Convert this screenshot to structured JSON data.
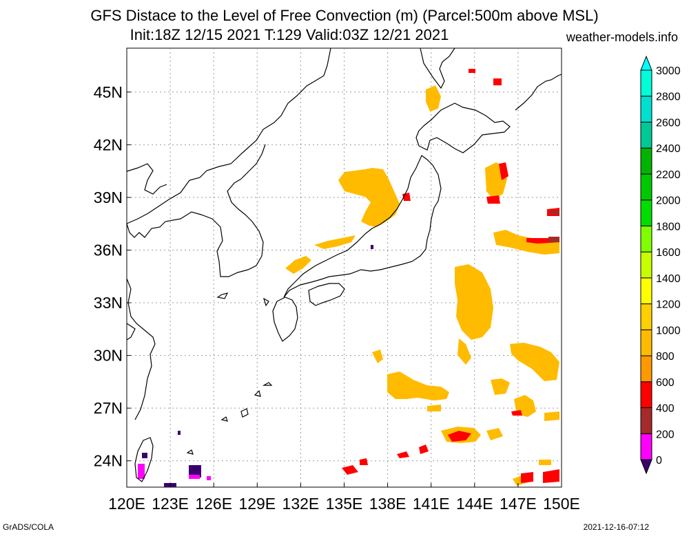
{
  "header": {
    "title_line1": "GFS Distace to the Level of Free Convection (m) (Parcel:500m above MSL)",
    "title_line2": "Init:18Z 12/15 2021 T:129 Valid:03Z 12/21 2021",
    "site": "weather-models.info"
  },
  "footer": {
    "left": "GrADS/COLA",
    "right": "2021-12-16-07:12"
  },
  "map": {
    "lon_range": [
      120,
      150
    ],
    "lat_range": [
      22.5,
      47.5
    ],
    "x_ticks": [
      "120E",
      "123E",
      "126E",
      "129E",
      "132E",
      "135E",
      "138E",
      "141E",
      "144E",
      "147E",
      "150E"
    ],
    "y_ticks": [
      "24N",
      "27N",
      "30N",
      "33N",
      "36N",
      "39N",
      "42N",
      "45N"
    ]
  },
  "colorbar": {
    "labels": [
      "0",
      "200",
      "400",
      "600",
      "800",
      "1000",
      "1200",
      "1400",
      "1600",
      "1800",
      "2000",
      "2200",
      "2400",
      "2600",
      "2800",
      "3000"
    ],
    "colors": [
      "#3a006e",
      "#ff00ff",
      "#a52a2a",
      "#ff0000",
      "#ff9900",
      "#ffbb00",
      "#ffd000",
      "#ffff00",
      "#c8ff00",
      "#80ff00",
      "#00dd00",
      "#00c800",
      "#00b400",
      "#00c896",
      "#00e0d0",
      "#00ffd8",
      "#00ffff"
    ]
  },
  "colors": {
    "orange": "#ffbb00",
    "orange_dark": "#ff9900",
    "red": "#ff0000",
    "brown": "#a52a2a",
    "magenta": "#ff00ff",
    "purple": "#3a006e"
  }
}
